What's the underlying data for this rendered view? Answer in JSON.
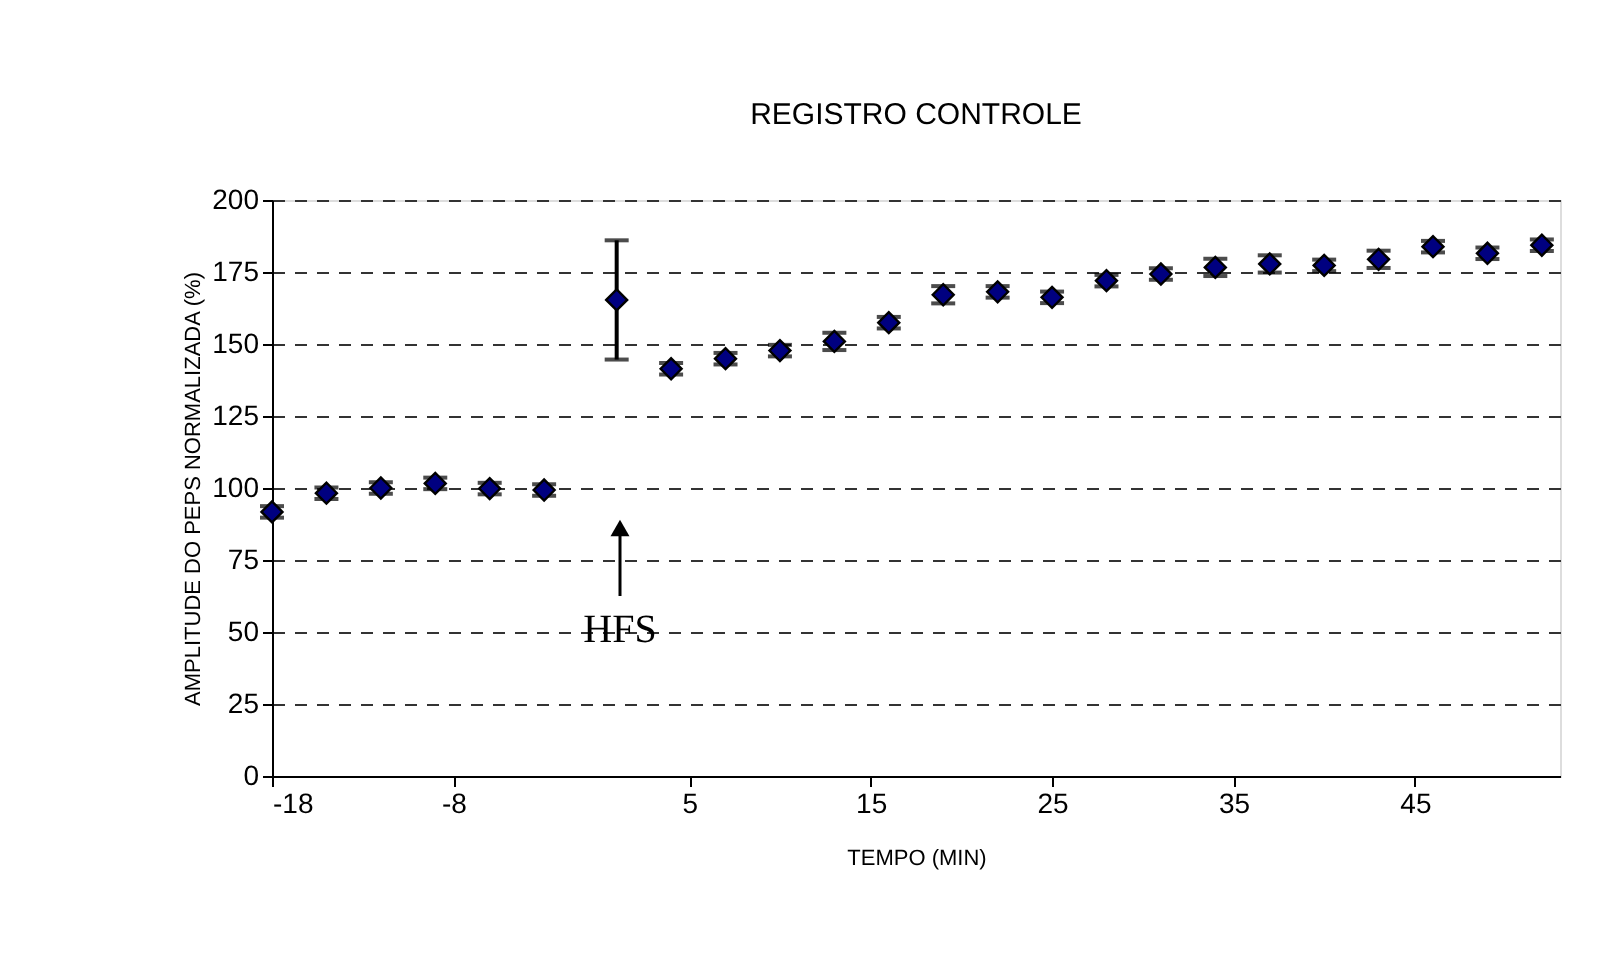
{
  "chart_data": {
    "type": "scatter",
    "title": "REGISTRO CONTROLE",
    "xlabel": "TEMPO (MIN)",
    "ylabel": "AMPLITUDE DO PEPS NORMALIZADA (%)",
    "x": [
      -18,
      -15,
      -12,
      -9,
      -6,
      -3,
      1,
      4,
      7,
      10,
      13,
      16,
      19,
      22,
      25,
      28,
      31,
      34,
      37,
      40,
      43,
      46,
      49,
      52
    ],
    "series": [
      {
        "color": "#000080",
        "values": [
          91.7,
          98.2,
          100,
          101.6,
          99.8,
          99.3,
          165.3,
          141.4,
          144.9,
          147.7,
          150.9,
          157.4,
          167.1,
          168.1,
          166.2,
          172,
          174.3,
          176.6,
          177.8,
          177.3,
          179.4,
          183.8,
          181.5,
          184.3
        ],
        "errors": [
          2,
          2,
          2,
          2,
          2,
          2,
          [
            144.6,
            186
          ],
          2,
          2,
          2,
          3,
          2,
          3,
          2,
          2,
          2,
          2,
          3,
          3,
          2,
          3,
          2,
          2,
          2
        ]
      }
    ],
    "xlim": [
      -18,
      53
    ],
    "xticks": [
      -18,
      -8,
      5,
      15,
      25,
      35,
      45
    ],
    "ylim": [
      0,
      200
    ],
    "yticks": [
      0,
      25,
      50,
      75,
      100,
      125,
      150,
      175,
      200
    ],
    "grid": "y",
    "marker": "diamond",
    "annotations": [
      "HFS"
    ]
  }
}
